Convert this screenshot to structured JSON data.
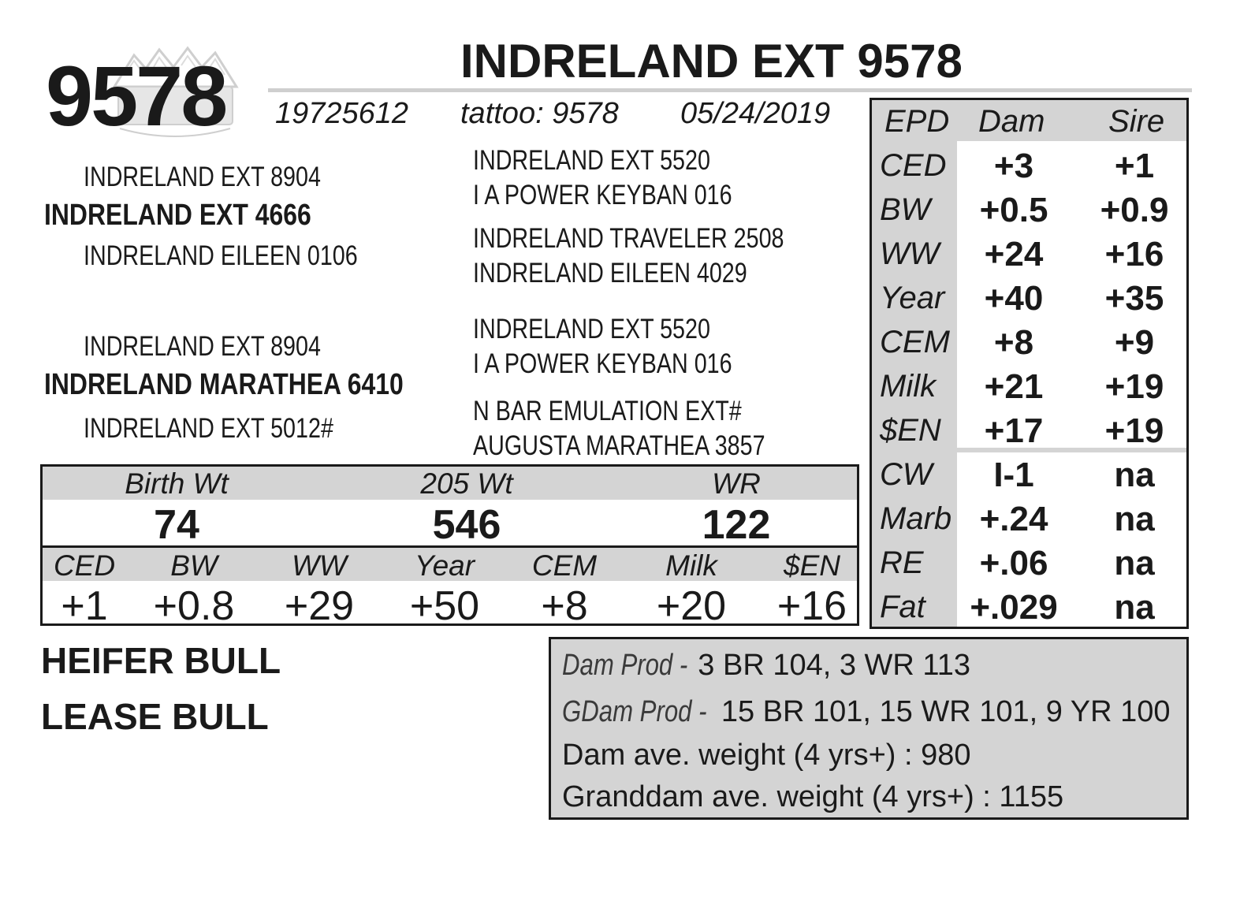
{
  "header": {
    "lot_number": "9578",
    "animal_name": "INDRELAND EXT 9578",
    "registration": "19725612",
    "tattoo": "tattoo: 9578",
    "birth_date": "05/24/2019"
  },
  "pedigree": {
    "sire_sire": "INDRELAND EXT 8904",
    "sire": "INDRELAND EXT 4666",
    "sire_dam": "INDRELAND EILEEN 0106",
    "sire_sire_sire": "INDRELAND EXT 5520",
    "sire_sire_dam": "I A POWER KEYBAN 016",
    "sire_dam_sire": "INDRELAND TRAVELER 2508",
    "sire_dam_dam": "INDRELAND EILEEN 4029",
    "dam_sire": "INDRELAND EXT 8904",
    "dam": "INDRELAND MARATHEA 6410",
    "dam_dam": "INDRELAND EXT 5012#",
    "dam_sire_sire": "INDRELAND EXT 5520",
    "dam_sire_dam": "I A POWER KEYBAN 016",
    "dam_dam_sire": "N BAR EMULATION EXT#",
    "dam_dam_dam": "AUGUSTA MARATHEA 3857"
  },
  "performance": {
    "labels": [
      "Birth Wt",
      "205 Wt",
      "WR"
    ],
    "values": [
      "74",
      "546",
      "122"
    ]
  },
  "calf_epd": {
    "labels": [
      "CED",
      "BW",
      "WW",
      "Year",
      "CEM",
      "Milk",
      "$EN"
    ],
    "values": [
      "+1",
      "+0.8",
      "+29",
      "+50",
      "+8",
      "+20",
      "+16"
    ]
  },
  "tags": [
    "HEIFER BULL",
    "LEASE BULL"
  ],
  "epd_table": {
    "headers": [
      "EPD",
      "Dam",
      "Sire"
    ],
    "rows": [
      {
        "trait": "CED",
        "dam": "+3",
        "sire": "+1"
      },
      {
        "trait": "BW",
        "dam": "+0.5",
        "sire": "+0.9"
      },
      {
        "trait": "WW",
        "dam": "+24",
        "sire": "+16"
      },
      {
        "trait": "Year",
        "dam": "+40",
        "sire": "+35"
      },
      {
        "trait": "CEM",
        "dam": "+8",
        "sire": "+9"
      },
      {
        "trait": "Milk",
        "dam": "+21",
        "sire": "+19"
      },
      {
        "trait": "$EN",
        "dam": "+17",
        "sire": "+19"
      },
      {
        "trait": "CW",
        "dam": "I-1",
        "sire": "na"
      },
      {
        "trait": "Marb",
        "dam": "+.24",
        "sire": "na"
      },
      {
        "trait": "RE",
        "dam": "+.06",
        "sire": "na"
      },
      {
        "trait": "Fat",
        "dam": "+.029",
        "sire": "na"
      }
    ]
  },
  "production": {
    "dam_prod_label": "Dam Prod - ",
    "dam_prod_value": "3 BR 104, 3 WR 113",
    "gdam_prod_label": "GDam Prod - ",
    "gdam_prod_value": "15 BR 101, 15 WR 101, 9 YR 100",
    "dam_weight": "Dam ave. weight (4 yrs+) : 980",
    "granddam_weight": "Granddam ave. weight (4 yrs+) : 1155"
  },
  "logo": {
    "icon": "mountain-ranch-logo-icon",
    "color": "#cfcfcf"
  }
}
